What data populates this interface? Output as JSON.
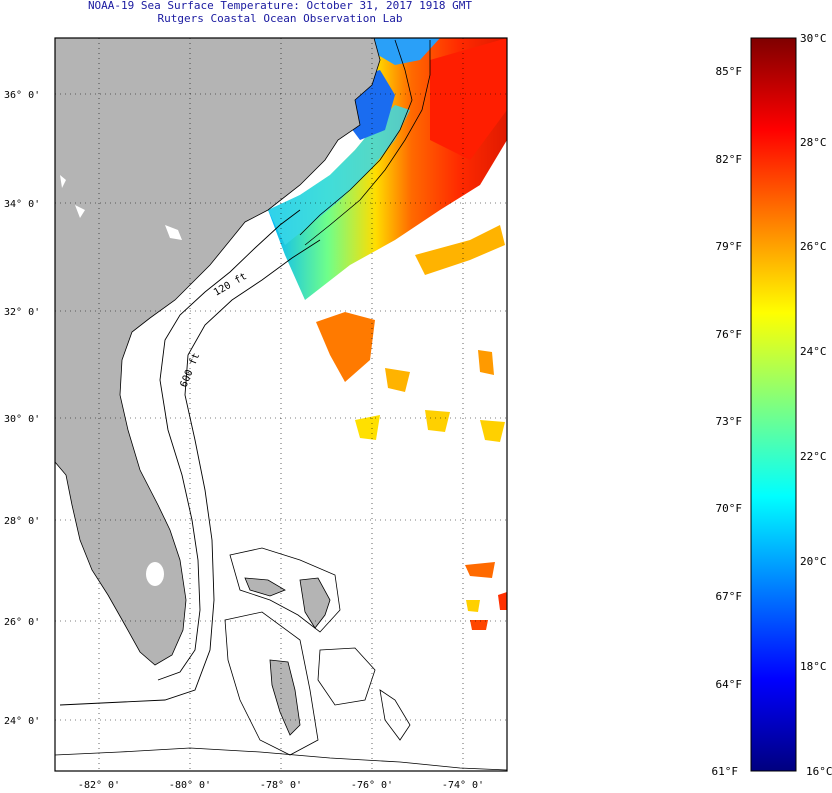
{
  "header": {
    "title": "NOAA-19 Sea Surface Temperature:  October 31, 2017 1918 GMT",
    "subtitle": "Rutgers Coastal Ocean Observation Lab"
  },
  "map": {
    "lat_ticks": [
      "36° 0'",
      "34° 0'",
      "32° 0'",
      "30° 0'",
      "28° 0'",
      "26° 0'",
      "24° 0'"
    ],
    "lon_ticks": [
      "-82° 0'",
      "-80° 0'",
      "-78° 0'",
      "-76° 0'",
      "-74° 0'"
    ],
    "contour_labels": [
      "120 ft",
      "600 ft"
    ],
    "colors": {
      "land": "#b4b4b4",
      "no_data": "#ffffff",
      "coast_line": "#000000"
    }
  },
  "colorbar": {
    "fahrenheit_labels": [
      "85°F",
      "82°F",
      "79°F",
      "76°F",
      "73°F",
      "70°F",
      "67°F",
      "64°F",
      "61°F"
    ],
    "celsius_labels": [
      "30°C",
      "28°C",
      "26°C",
      "24°C",
      "22°C",
      "20°C",
      "18°C",
      "16°C"
    ],
    "range_c": [
      16,
      30
    ],
    "range_f": [
      61,
      86
    ],
    "stops": [
      "#00007f",
      "#0000ff",
      "#007fff",
      "#00ffff",
      "#7fff7f",
      "#ffff00",
      "#ff7f00",
      "#ff0000",
      "#7f0000"
    ]
  }
}
